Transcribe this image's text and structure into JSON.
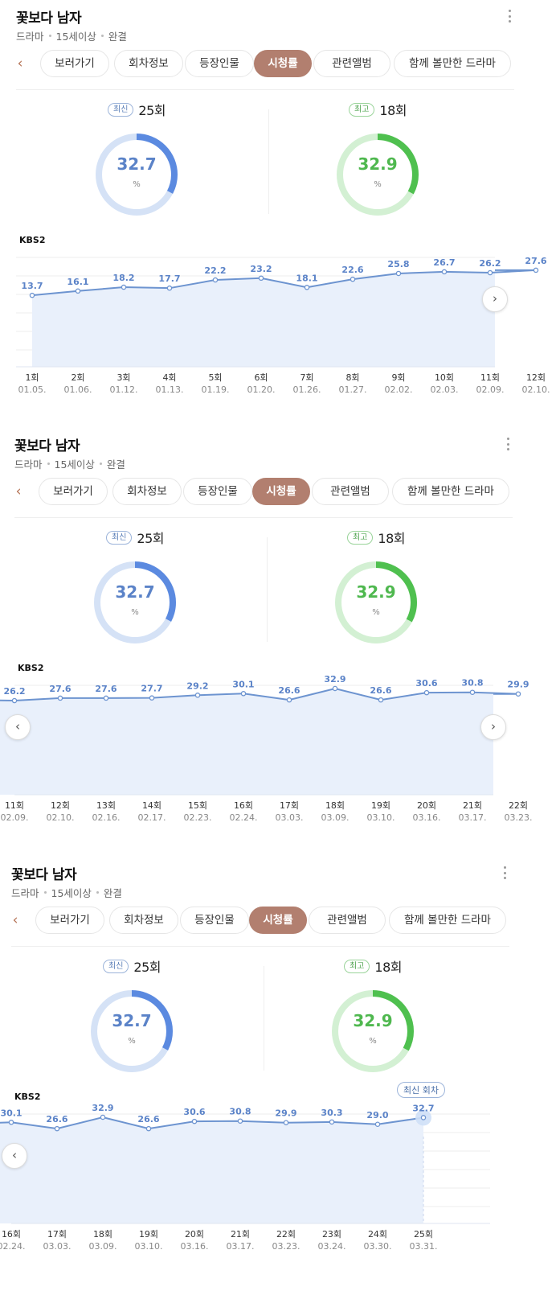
{
  "show": {
    "title": "꽃보다 남자",
    "meta": [
      "드라마",
      "15세이상",
      "완결"
    ]
  },
  "tabs": [
    "보러가기",
    "회차정보",
    "등장인물",
    "시청률",
    "관련앨범",
    "함께 볼만한 드라마"
  ],
  "active_tab": "시청률",
  "latest": {
    "badge": "최신",
    "episode": "25회",
    "value": "32.7",
    "unit": "%"
  },
  "highest": {
    "badge": "최고",
    "episode": "18회",
    "value": "32.9",
    "unit": "%"
  },
  "network": "KBS2",
  "latest_marker": "최신 회차",
  "colors": {
    "accent_tab": "#b27f6f",
    "blue": "#5b83c8",
    "green": "#4fb84f",
    "area": "#e9f0fb"
  },
  "icons": {
    "prev": "chevron-left-icon",
    "next": "chevron-right-icon",
    "more": "more-vertical-icon"
  },
  "chart_data": {
    "type": "area",
    "x": [
      "1회",
      "2회",
      "3회",
      "4회",
      "5회",
      "6회",
      "7회",
      "8회",
      "9회",
      "10회",
      "11회",
      "12회",
      "13회",
      "14회",
      "15회",
      "16회",
      "17회",
      "18회",
      "19회",
      "20회",
      "21회",
      "22회",
      "23회",
      "24회",
      "25회"
    ],
    "dates": [
      "01.05.",
      "01.06.",
      "01.12.",
      "01.13.",
      "01.19.",
      "01.20.",
      "01.26.",
      "01.27.",
      "02.02.",
      "02.03.",
      "02.09.",
      "02.10.",
      "02.16.",
      "02.17.",
      "02.23.",
      "02.24.",
      "03.03.",
      "03.09.",
      "03.10.",
      "03.16.",
      "03.17.",
      "03.23.",
      "03.24.",
      "03.30.",
      "03.31."
    ],
    "values": [
      13.7,
      16.1,
      18.2,
      17.7,
      22.2,
      23.2,
      18.1,
      22.6,
      25.8,
      26.7,
      26.2,
      27.6,
      27.6,
      27.7,
      29.2,
      30.1,
      26.6,
      32.9,
      26.6,
      30.6,
      30.8,
      29.9,
      30.3,
      29.0,
      32.7
    ],
    "ylabel": "%",
    "grid": true
  },
  "views": [
    {
      "start": 0,
      "show_next": true,
      "show_prev": false,
      "show_marker": false
    },
    {
      "start": 10,
      "show_next": true,
      "show_prev": true,
      "show_marker": false
    },
    {
      "start": 15,
      "show_next": false,
      "show_prev": true,
      "show_marker": true
    }
  ]
}
